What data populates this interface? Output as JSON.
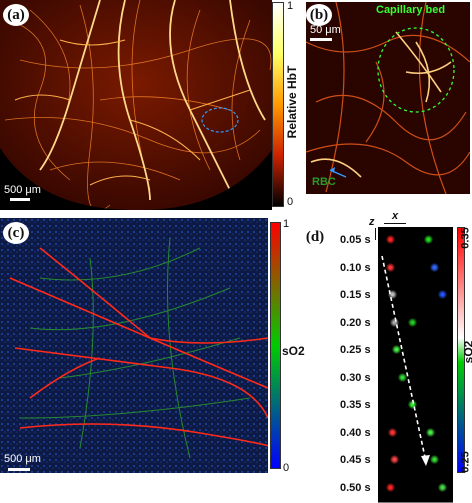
{
  "panels": {
    "a": {
      "label": "(a)",
      "scale": "500 μm",
      "colorbar": {
        "top": "1",
        "bottom": "0",
        "title": "Relative HbT"
      }
    },
    "b": {
      "label": "(b)",
      "scale": "50 μm",
      "annotation_capillary": "Capillary bed",
      "annotation_rbc": "RBC"
    },
    "c": {
      "label": "(c)",
      "scale": "500 μm",
      "colorbar": {
        "top": "1",
        "bottom": "0",
        "title": "sO2"
      }
    },
    "d": {
      "label": "(d)",
      "axis_z": "z",
      "axis_x": "x",
      "times": [
        "0.05 s",
        "0.10 s",
        "0.15 s",
        "0.20 s",
        "0.25 s",
        "0.30 s",
        "0.35 s",
        "0.40 s",
        "0.45 s",
        "0.50 s"
      ],
      "colorbar": {
        "top": "0.35",
        "bottom": "0.25",
        "title": "sO2"
      }
    }
  },
  "colors": {
    "hbt_vessel": "#ffcc66",
    "background": "#000000",
    "so2_high": "#ff0000",
    "so2_mid": "#00cc00",
    "so2_low": "#0000ff",
    "annotation_green": "#33ff33",
    "annotation_blue": "#3399ff"
  }
}
